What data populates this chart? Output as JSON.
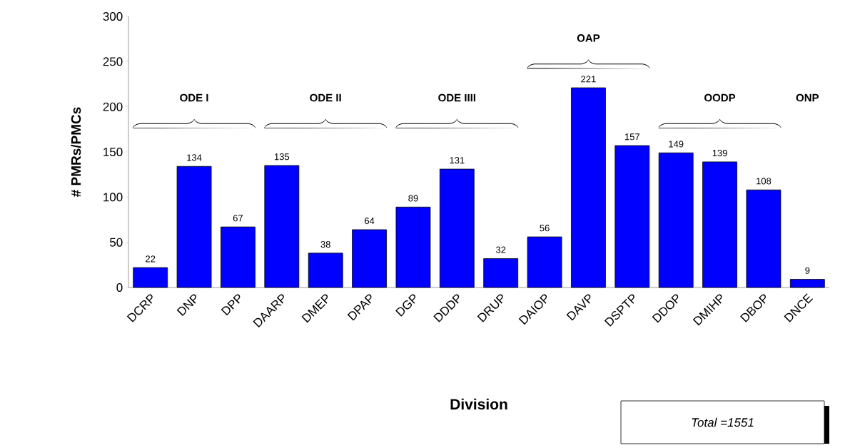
{
  "chart_data": {
    "type": "bar",
    "xlabel": "Division",
    "ylabel": "# PMRs/PMCs",
    "categories": [
      "DCRP",
      "DNP",
      "DPP",
      "DAARP",
      "DMEP",
      "DPAP",
      "DGP",
      "DDDP",
      "DRUP",
      "DAIOP",
      "DAVP",
      "DSPTP",
      "DDOP",
      "DMIHP",
      "DBOP",
      "DNCE"
    ],
    "values": [
      22,
      134,
      67,
      135,
      38,
      64,
      89,
      131,
      32,
      56,
      221,
      157,
      149,
      139,
      108,
      9
    ],
    "color": "#0000ff",
    "data_labels": true,
    "ylim": [
      0,
      300
    ],
    "yticks": [
      0,
      50,
      100,
      150,
      200,
      250,
      300
    ],
    "annotations": [
      "ODE I",
      "ODE II",
      "ODE IIII",
      "OAP",
      "OODP",
      "ONP",
      "Total =1551"
    ]
  }
}
